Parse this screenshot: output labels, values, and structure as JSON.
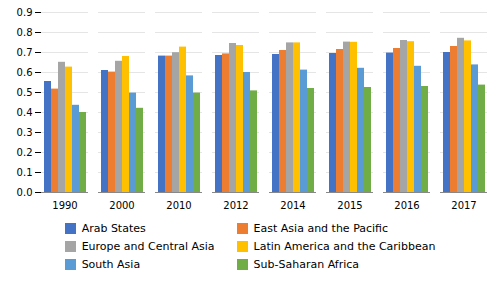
{
  "chart_data": {
    "type": "bar",
    "categories": [
      "1990",
      "2000",
      "2010",
      "2012",
      "2014",
      "2015",
      "2016",
      "2017"
    ],
    "series": [
      {
        "name": "Arab States",
        "color": "#4472C4",
        "values": [
          0.555,
          0.61,
          0.682,
          0.685,
          0.69,
          0.695,
          0.697,
          0.7
        ]
      },
      {
        "name": "East Asia and the Pacific",
        "color": "#ED7D31",
        "values": [
          0.517,
          0.602,
          0.682,
          0.693,
          0.71,
          0.715,
          0.72,
          0.73
        ]
      },
      {
        "name": "Europe and Central Asia",
        "color": "#A5A5A5",
        "values": [
          0.651,
          0.656,
          0.699,
          0.745,
          0.748,
          0.752,
          0.76,
          0.771
        ]
      },
      {
        "name": "Latin America and the Caribbean",
        "color": "#FFC000",
        "values": [
          0.627,
          0.68,
          0.727,
          0.735,
          0.748,
          0.751,
          0.754,
          0.758
        ]
      },
      {
        "name": "South Asia",
        "color": "#5B9BD5",
        "values": [
          0.436,
          0.497,
          0.583,
          0.6,
          0.612,
          0.621,
          0.631,
          0.638
        ]
      },
      {
        "name": "Sub-Saharan Africa",
        "color": "#70AD47",
        "values": [
          0.4,
          0.421,
          0.497,
          0.508,
          0.52,
          0.525,
          0.53,
          0.537
        ]
      }
    ],
    "ylim": [
      0,
      0.9
    ],
    "yticks": [
      {
        "value": 0,
        "label": "0.0"
      },
      0.1,
      0.2,
      0.3,
      0.4,
      0.5,
      0.6,
      0.7,
      0.8,
      0.9
    ],
    "grid": true,
    "legend": "bottom"
  }
}
